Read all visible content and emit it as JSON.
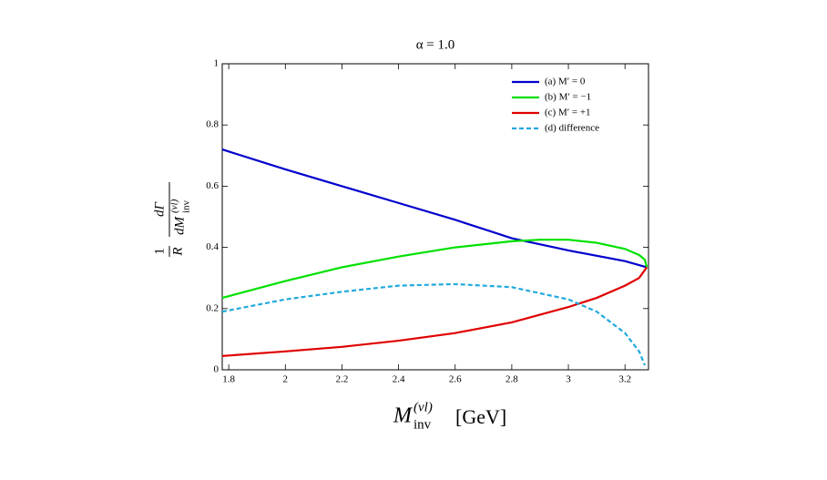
{
  "chart_data": {
    "type": "line",
    "title": "α = 1.0",
    "xlabel": [
      "M",
      "(νl)",
      "inv",
      "[GeV]"
    ],
    "ylabel": [
      "1",
      "R",
      "dΓ",
      "dM",
      "(νl)",
      "inv"
    ],
    "xlim": [
      1.777,
      3.283
    ],
    "ylim": [
      0,
      1
    ],
    "xticks": [
      1.8,
      2,
      2.2,
      2.4,
      2.6,
      2.8,
      3,
      3.2
    ],
    "yticks": [
      0,
      0.2,
      0.4,
      0.6,
      0.8,
      1
    ],
    "legend": "upper right",
    "series": [
      {
        "name": "(a) M′ = 0",
        "color": "#0000cc",
        "linestyle": "solid",
        "x": [
          1.777,
          2.0,
          2.2,
          2.4,
          2.6,
          2.8,
          3.0,
          3.2,
          3.277
        ],
        "values": [
          0.72,
          0.655,
          0.6,
          0.545,
          0.49,
          0.43,
          0.39,
          0.355,
          0.335
        ]
      },
      {
        "name": "(b) M′ = −1",
        "color": "#00e000",
        "linestyle": "solid",
        "x": [
          1.777,
          2.0,
          2.2,
          2.4,
          2.6,
          2.8,
          2.9,
          3.0,
          3.1,
          3.2,
          3.25,
          3.27,
          3.277
        ],
        "values": [
          0.235,
          0.29,
          0.335,
          0.37,
          0.4,
          0.42,
          0.425,
          0.425,
          0.415,
          0.395,
          0.375,
          0.36,
          0.335
        ]
      },
      {
        "name": "(c) M′ = +1",
        "color": "#e00000",
        "linestyle": "solid",
        "x": [
          1.777,
          2.0,
          2.2,
          2.4,
          2.6,
          2.8,
          3.0,
          3.1,
          3.2,
          3.25,
          3.277
        ],
        "values": [
          0.045,
          0.06,
          0.075,
          0.095,
          0.12,
          0.155,
          0.205,
          0.235,
          0.275,
          0.3,
          0.335
        ]
      },
      {
        "name": "(d) difference",
        "color": "#22aadd",
        "linestyle": "dashed",
        "x": [
          1.777,
          2.0,
          2.2,
          2.4,
          2.6,
          2.8,
          3.0,
          3.1,
          3.2,
          3.25,
          3.27
        ],
        "values": [
          0.19,
          0.23,
          0.255,
          0.275,
          0.28,
          0.27,
          0.23,
          0.19,
          0.12,
          0.06,
          0.015
        ]
      }
    ]
  }
}
